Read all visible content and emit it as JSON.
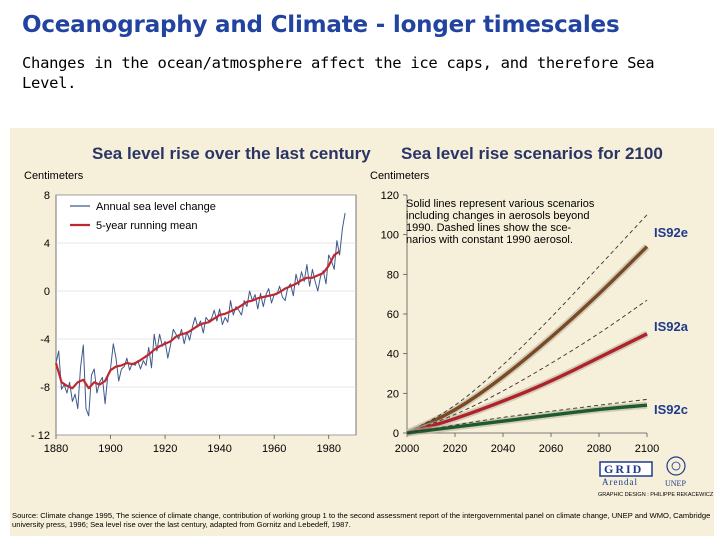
{
  "slide": {
    "title": "Oceanography and Climate  - longer timescales",
    "subtitle": "Changes in the ocean/atmosphere affect the ice caps, and therefore Sea Level."
  },
  "colors": {
    "title": "#2244a0",
    "figure_bg": "#f6efd9",
    "annual_line": "#3d5a8a",
    "running_mean": "#c0282d",
    "IS92e": "#7a4a24",
    "IS92a": "#b02228",
    "IS92c": "#1d5c2a",
    "scenario_label": "#1f3a8c"
  },
  "chart_data": [
    {
      "type": "line",
      "title": "Sea level rise over the last century",
      "ylabel": "Centimeters",
      "xlabel": "",
      "xlim": [
        1880,
        1990
      ],
      "ylim": [
        -12,
        8
      ],
      "xticks": [
        1880,
        1900,
        1920,
        1940,
        1960,
        1980
      ],
      "yticks": [
        8,
        4,
        0,
        -4,
        -8,
        -12
      ],
      "ytick_labels": [
        "8",
        "4",
        "0",
        "-4",
        "-8",
        "- 12"
      ],
      "grid": true,
      "legend": {
        "placement": "top-left",
        "entries": [
          "Annual sea level change",
          "5-year running mean"
        ]
      },
      "series": [
        {
          "name": "Annual sea level change",
          "x": [
            1880,
            1881,
            1882,
            1883,
            1884,
            1885,
            1886,
            1887,
            1888,
            1889,
            1890,
            1891,
            1892,
            1893,
            1894,
            1895,
            1896,
            1897,
            1898,
            1899,
            1900,
            1901,
            1902,
            1903,
            1904,
            1905,
            1906,
            1907,
            1908,
            1909,
            1910,
            1911,
            1912,
            1913,
            1914,
            1915,
            1916,
            1917,
            1918,
            1919,
            1920,
            1921,
            1922,
            1923,
            1924,
            1925,
            1926,
            1927,
            1928,
            1929,
            1930,
            1931,
            1932,
            1933,
            1934,
            1935,
            1936,
            1937,
            1938,
            1939,
            1940,
            1941,
            1942,
            1943,
            1944,
            1945,
            1946,
            1947,
            1948,
            1949,
            1950,
            1951,
            1952,
            1953,
            1954,
            1955,
            1956,
            1957,
            1958,
            1959,
            1960,
            1961,
            1962,
            1963,
            1964,
            1965,
            1966,
            1967,
            1968,
            1969,
            1970,
            1971,
            1972,
            1973,
            1974,
            1975,
            1976,
            1977,
            1978,
            1979,
            1980,
            1981,
            1982,
            1983,
            1984,
            1985,
            1986
          ],
          "values": [
            -6,
            -5,
            -8.2,
            -7.8,
            -8.5,
            -7.6,
            -9.2,
            -8.6,
            -9.8,
            -6.4,
            -4.5,
            -9.8,
            -10.4,
            -7,
            -6.5,
            -8.5,
            -7.6,
            -7.2,
            -9.4,
            -7,
            -6.5,
            -4.4,
            -5.6,
            -7.5,
            -6.5,
            -6.3,
            -5.6,
            -6.6,
            -6,
            -6.2,
            -5.8,
            -6.5,
            -5.8,
            -6.2,
            -4.7,
            -6.4,
            -3.6,
            -5,
            -3.6,
            -4.6,
            -4.2,
            -5.6,
            -4.5,
            -3.2,
            -3.6,
            -4,
            -3.2,
            -4.4,
            -3.4,
            -4.1,
            -3,
            -2.2,
            -3,
            -2.5,
            -3.5,
            -2.2,
            -2.5,
            -2.3,
            -1.6,
            -2.5,
            -1.5,
            -2.8,
            -2.2,
            -2.6,
            -0.8,
            -2,
            -1.3,
            -1.6,
            -2,
            -0.8,
            -1.3,
            0,
            -0.8,
            -0.3,
            -1.5,
            -0.2,
            -1.3,
            -0.3,
            0.2,
            -1,
            -0.3,
            -0.3,
            0.4,
            -0.5,
            -0.8,
            0.3,
            0.6,
            -0.4,
            1.4,
            0.5,
            1.6,
            0.8,
            2.2,
            0.4,
            1.8,
            0.8,
            0,
            1.2,
            1.7,
            0.6,
            3,
            2.5,
            1.8,
            4.2,
            3,
            5.2,
            6.5
          ]
        },
        {
          "name": "5-year running mean",
          "x": [
            1880,
            1882,
            1884,
            1886,
            1888,
            1890,
            1892,
            1894,
            1896,
            1898,
            1900,
            1902,
            1904,
            1906,
            1908,
            1910,
            1912,
            1914,
            1916,
            1918,
            1920,
            1922,
            1924,
            1926,
            1928,
            1930,
            1932,
            1934,
            1936,
            1938,
            1940,
            1942,
            1944,
            1946,
            1948,
            1950,
            1952,
            1954,
            1956,
            1958,
            1960,
            1962,
            1964,
            1966,
            1968,
            1970,
            1972,
            1974,
            1976,
            1978,
            1980,
            1982,
            1984
          ],
          "values": [
            -6,
            -7.6,
            -7.9,
            -8.1,
            -7.6,
            -7.4,
            -8.1,
            -7.6,
            -7.8,
            -7.5,
            -6.6,
            -6.3,
            -6.2,
            -6,
            -6.1,
            -5.9,
            -5.6,
            -5.3,
            -4.9,
            -4.6,
            -4.4,
            -4.2,
            -3.8,
            -3.6,
            -3.5,
            -3.2,
            -2.9,
            -2.7,
            -2.6,
            -2.3,
            -2,
            -1.9,
            -1.7,
            -1.5,
            -1.2,
            -0.9,
            -0.8,
            -0.6,
            -0.5,
            -0.4,
            -0.3,
            -0.1,
            0.2,
            0.4,
            0.6,
            0.9,
            1.1,
            1.1,
            1.3,
            1.5,
            2.1,
            3,
            3.3
          ]
        }
      ]
    },
    {
      "type": "line",
      "title": "Sea level rise scenarios for 2100",
      "ylabel": "Centimeters",
      "xlabel": "",
      "xlim": [
        2000,
        2100
      ],
      "ylim": [
        0,
        120
      ],
      "xticks": [
        2000,
        2020,
        2040,
        2060,
        2080,
        2100
      ],
      "yticks": [
        0,
        20,
        40,
        60,
        80,
        100,
        120
      ],
      "grid": false,
      "annotation": "Solid lines represent various scenarios including changes in aerosols beyond 1990. Dashed lines show the scenarios with constant 1990 aerosol.",
      "annotation_lines": [
        "Solid lines represent various scenarios",
        "including changes in aerosols beyond",
        "1990. Dashed lines show the sce-",
        "narios with constant 1990 aerosol."
      ],
      "series": [
        {
          "name": "IS92e",
          "style": "solid",
          "x": [
            2000,
            2020,
            2040,
            2060,
            2080,
            2100
          ],
          "values": [
            0,
            11,
            28,
            48,
            70,
            94
          ]
        },
        {
          "name": "IS92e",
          "style": "dashed",
          "x": [
            2000,
            2020,
            2040,
            2060,
            2080,
            2100
          ],
          "values": [
            0,
            13,
            34,
            58,
            84,
            110
          ]
        },
        {
          "name": "IS92a",
          "style": "solid",
          "x": [
            2000,
            2020,
            2040,
            2060,
            2080,
            2100
          ],
          "values": [
            0,
            7,
            16,
            26,
            38,
            50
          ]
        },
        {
          "name": "IS92a",
          "style": "dashed",
          "x": [
            2000,
            2020,
            2040,
            2060,
            2080,
            2100
          ],
          "values": [
            0,
            9,
            21,
            35,
            50,
            67
          ]
        },
        {
          "name": "IS92c",
          "style": "solid",
          "x": [
            2000,
            2020,
            2040,
            2060,
            2080,
            2100
          ],
          "values": [
            0,
            3,
            6,
            9,
            12,
            14
          ]
        },
        {
          "name": "IS92c",
          "style": "dashed",
          "x": [
            2000,
            2020,
            2040,
            2060,
            2080,
            2100
          ],
          "values": [
            0,
            4,
            8,
            11,
            14,
            17
          ]
        }
      ]
    }
  ],
  "figure": {
    "logo_text": "GRID",
    "logo_sub": "Arendal",
    "unep": "UNEP",
    "design_credit": "GRAPHIC DESIGN : PHILIPPE REKACEWICZ",
    "source_line1": "Source: Climate change 1995, The science of climate change, contribution of working group 1 to the second assessment report of the intergovernmental panel on climate change, UNEP and WMO, Cambridge",
    "source_line2": "university press,  1996; Sea level rise over the last century, adapted from Gornitz and Lebedeff, 1987."
  }
}
